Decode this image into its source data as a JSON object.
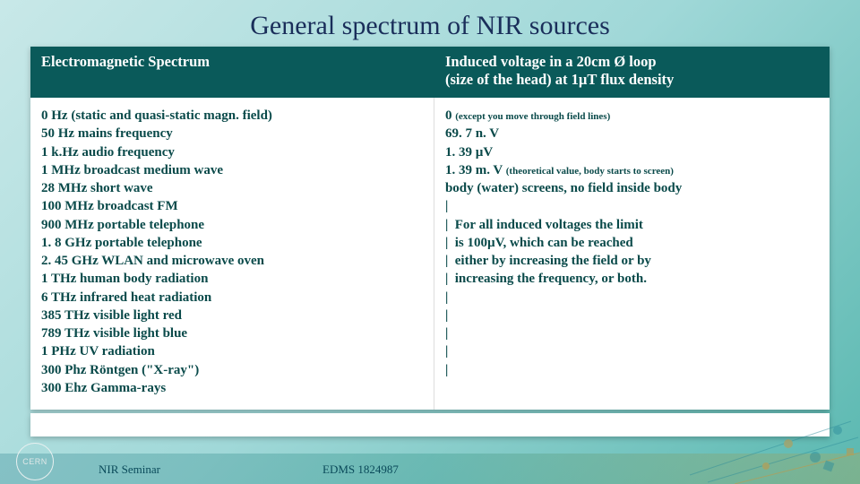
{
  "title": "General spectrum of NIR sources",
  "headers": {
    "left": "Electromagnetic Spectrum",
    "right_line1": "Induced voltage in a 20cm Ø loop",
    "right_line2": "(size of the head) at 1µT flux density"
  },
  "left_items": [
    "0 Hz (static and quasi-static magn. field)",
    "50 Hz mains frequency",
    "1 k.Hz audio frequency",
    "1 MHz broadcast medium wave",
    "28 MHz short wave",
    "100 MHz broadcast FM",
    "900 MHz portable telephone",
    "1. 8 GHz portable telephone",
    "2. 45 GHz WLAN and microwave oven",
    "1 THz human body radiation",
    "6 THz infrared heat radiation",
    "385 THz visible light red",
    "789 THz visible light blue",
    "1 PHz UV radiation",
    "300 Phz Röntgen (\"X-ray\")",
    "300 Ehz Gamma-rays"
  ],
  "right_rows": [
    {
      "pre": "0 ",
      "small": "(except you move through field lines)"
    },
    {
      "pre": "69. 7 n. V",
      "small": ""
    },
    {
      "pre": "1. 39 µV",
      "small": ""
    },
    {
      "pre": "1. 39 m. V ",
      "small": "(theoretical value, body starts to screen)"
    },
    {
      "pre": "body (water) screens, no field inside body",
      "small": ""
    }
  ],
  "pipes": [
    "|",
    "|",
    "|",
    "|",
    "|",
    "|",
    "|",
    "|",
    "|",
    "|"
  ],
  "note_lines": [
    "For all induced voltages the limit",
    "is 100µV, which can be reached",
    "either by increasing the field or by",
    "increasing the frequency, or both."
  ],
  "footer": {
    "badge": "CERN",
    "left": "NIR Seminar",
    "center": "EDMS 1824987"
  },
  "colors": {
    "title": "#1a2e5a",
    "th_bg": "#0a5a5a",
    "td_text": "#0a4a4a"
  }
}
